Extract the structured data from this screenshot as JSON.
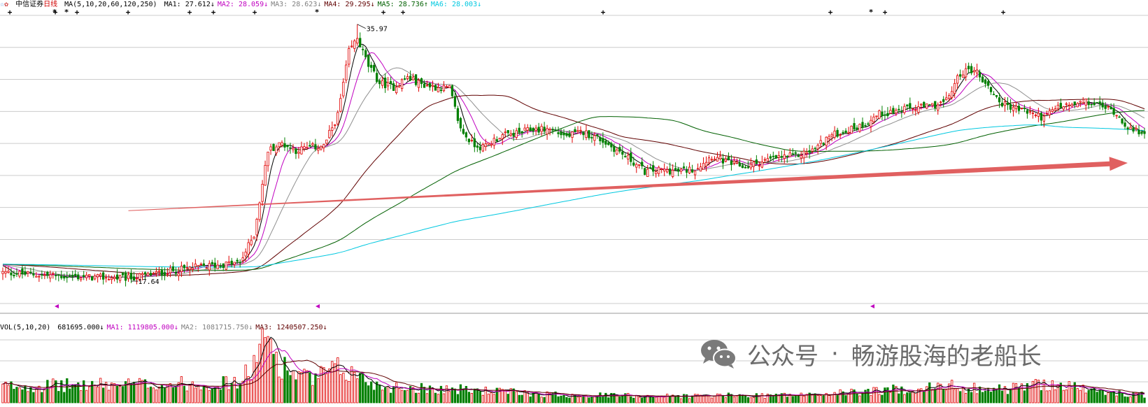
{
  "header": {
    "stock_name": "中信证券",
    "period": "日线",
    "ma_params": "MA(5,10,20,60,120,250)",
    "ma_items": [
      {
        "text": "MA1: 27.612↓",
        "color": "#000000"
      },
      {
        "text": "MA2: 28.059↓",
        "color": "#c000c0"
      },
      {
        "text": "MA3: 28.623↓",
        "color": "#808080"
      },
      {
        "text": "MA4: 29.295↓",
        "color": "#600000"
      },
      {
        "text": "MA5: 28.736↑",
        "color": "#006000"
      },
      {
        "text": "MA6: 28.003↓",
        "color": "#00c8e0"
      }
    ]
  },
  "volume_header": {
    "params": "VOL(5,10,20)",
    "items": [
      {
        "text": "681695.000↓",
        "color": "#000000"
      },
      {
        "text": "MA1: 1119805.000↓",
        "color": "#c000c0"
      },
      {
        "text": "MA2: 1081715.750↓",
        "color": "#808080"
      },
      {
        "text": "MA3: 1240507.250↓",
        "color": "#600000"
      }
    ]
  },
  "annotations": {
    "high_label": "35.97",
    "low_label": "17.64"
  },
  "watermark": {
    "text1": "公众号",
    "dot": "·",
    "text2": "畅游股海的老船长",
    "icon": "wechat-icon"
  },
  "colors": {
    "up": "#e00000",
    "down": "#008000",
    "arrow": "#e06060",
    "grid": "#cccccc",
    "ma1": "#000000",
    "ma2": "#c000c0",
    "ma3": "#909090",
    "ma4": "#600000",
    "ma5": "#006000",
    "ma6": "#00c8e0"
  },
  "chart_data": {
    "type": "candlestick",
    "symbol": "中信证券",
    "period": "日线",
    "ylim": [
      15.7,
      37.0
    ],
    "extremes": {
      "high": 35.97,
      "low": 17.64
    },
    "price_keypoints": [
      [
        0,
        18.3
      ],
      [
        25,
        18.0
      ],
      [
        45,
        17.9
      ],
      [
        60,
        18.4
      ],
      [
        70,
        18.7
      ],
      [
        85,
        19.0
      ],
      [
        90,
        21.0
      ],
      [
        95,
        27.0
      ],
      [
        100,
        27.5
      ],
      [
        105,
        27.0
      ],
      [
        110,
        27.2
      ],
      [
        115,
        27.3
      ],
      [
        120,
        29.5
      ],
      [
        124,
        34.0
      ],
      [
        127,
        35.0
      ],
      [
        131,
        33.0
      ],
      [
        135,
        31.8
      ],
      [
        140,
        31.5
      ],
      [
        145,
        32.2
      ],
      [
        150,
        31.7
      ],
      [
        155,
        31.5
      ],
      [
        160,
        31.4
      ],
      [
        164,
        28.5
      ],
      [
        168,
        27.5
      ],
      [
        172,
        27.2
      ],
      [
        178,
        28.0
      ],
      [
        184,
        28.2
      ],
      [
        190,
        28.5
      ],
      [
        196,
        28.5
      ],
      [
        202,
        28.0
      ],
      [
        208,
        28.3
      ],
      [
        214,
        27.8
      ],
      [
        220,
        27.0
      ],
      [
        225,
        26.3
      ],
      [
        230,
        25.5
      ],
      [
        236,
        25.6
      ],
      [
        242,
        25.5
      ],
      [
        248,
        25.7
      ],
      [
        254,
        26.6
      ],
      [
        260,
        26.1
      ],
      [
        266,
        25.8
      ],
      [
        272,
        26.2
      ],
      [
        278,
        26.5
      ],
      [
        284,
        26.6
      ],
      [
        290,
        27.0
      ],
      [
        296,
        28.0
      ],
      [
        302,
        28.4
      ],
      [
        308,
        28.8
      ],
      [
        314,
        29.6
      ],
      [
        320,
        29.8
      ],
      [
        326,
        30.0
      ],
      [
        332,
        30.1
      ],
      [
        338,
        30.5
      ],
      [
        343,
        32.5
      ],
      [
        348,
        32.8
      ],
      [
        353,
        31.5
      ],
      [
        358,
        30.3
      ],
      [
        363,
        30.0
      ],
      [
        368,
        29.7
      ],
      [
        373,
        29.3
      ],
      [
        378,
        30.1
      ],
      [
        383,
        30.2
      ],
      [
        388,
        30.4
      ],
      [
        393,
        30.2
      ],
      [
        398,
        29.8
      ],
      [
        402,
        28.9
      ],
      [
        405,
        28.3
      ],
      [
        408,
        28.4
      ]
    ],
    "volume_keypoints": [
      [
        0,
        0.25
      ],
      [
        85,
        0.3
      ],
      [
        90,
        0.6
      ],
      [
        95,
        1.0
      ],
      [
        100,
        0.55
      ],
      [
        110,
        0.35
      ],
      [
        120,
        0.5
      ],
      [
        125,
        0.45
      ],
      [
        135,
        0.25
      ],
      [
        164,
        0.2
      ],
      [
        200,
        0.12
      ],
      [
        240,
        0.1
      ],
      [
        290,
        0.12
      ],
      [
        340,
        0.25
      ],
      [
        358,
        0.2
      ],
      [
        375,
        0.3
      ],
      [
        395,
        0.15
      ],
      [
        408,
        0.12
      ]
    ],
    "moving_averages": [
      {
        "name": "MA1",
        "period": 5,
        "last": 27.612
      },
      {
        "name": "MA2",
        "period": 10,
        "last": 28.059
      },
      {
        "name": "MA3",
        "period": 20,
        "last": 28.623
      },
      {
        "name": "MA4",
        "period": 60,
        "last": 29.295
      },
      {
        "name": "MA5",
        "period": 120,
        "last": 28.736
      },
      {
        "name": "MA6",
        "period": 250,
        "last": 28.003
      }
    ],
    "volume": {
      "last": 681695.0,
      "ma5": 1119805.0,
      "ma10": 1081715.75,
      "ma20": 1240507.25
    },
    "annotations": [
      {
        "type": "arrow",
        "from": {
          "x": 45,
          "y": 22.7
        },
        "to": {
          "x": 408,
          "y": 26.1
        }
      }
    ]
  }
}
